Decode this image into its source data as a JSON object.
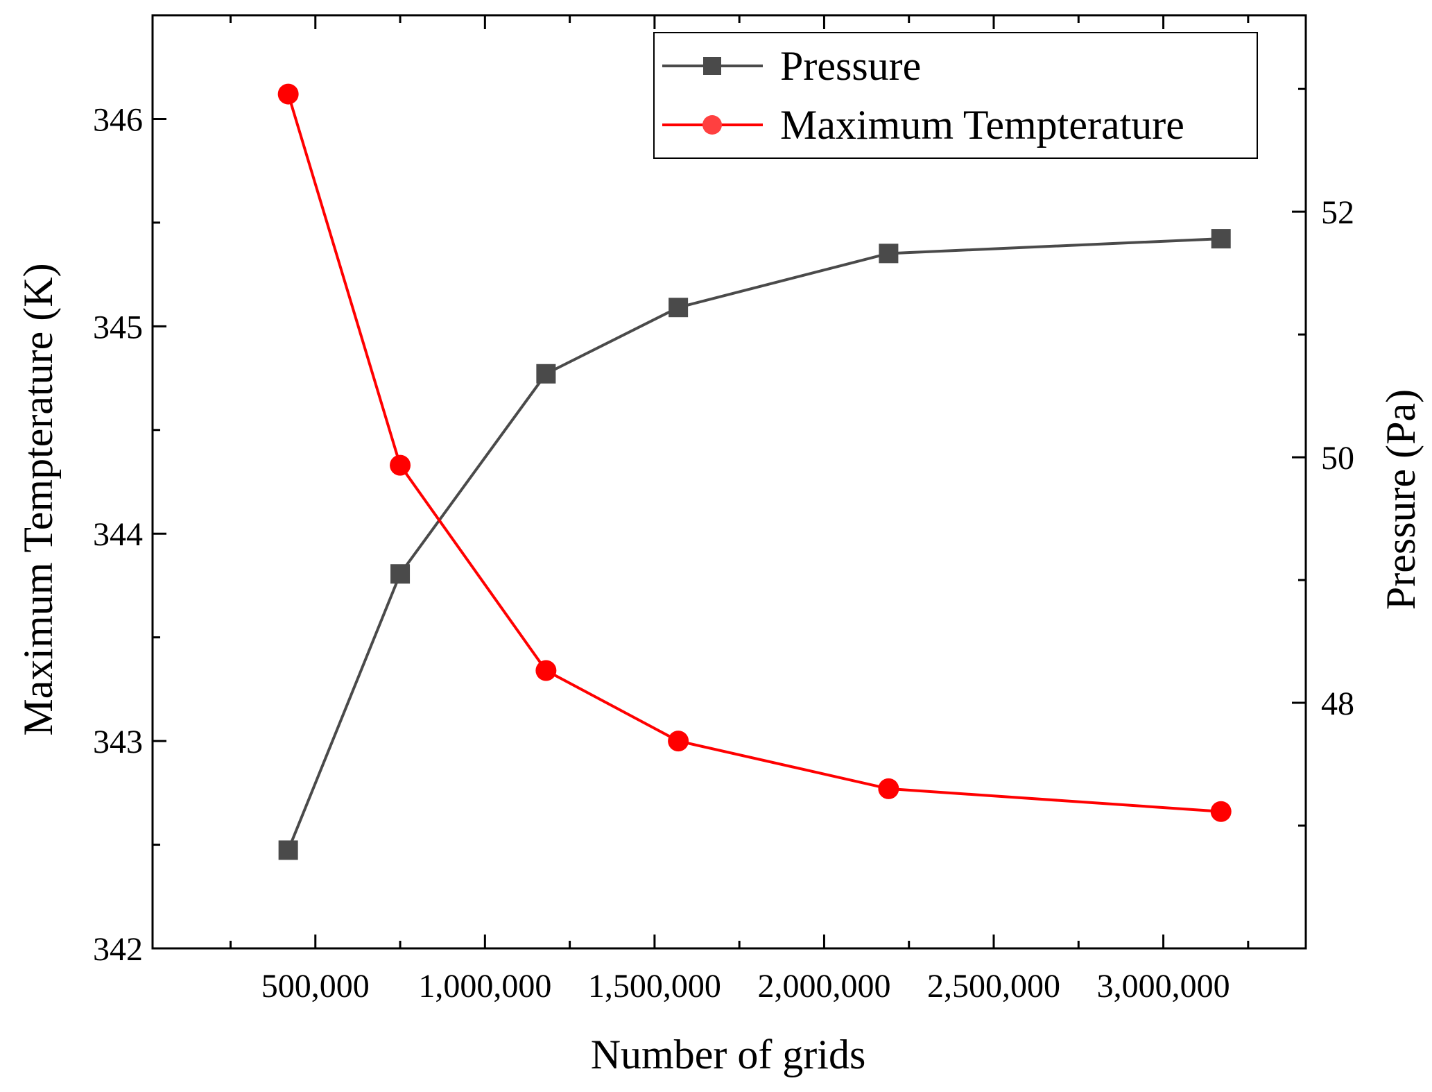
{
  "chart_data": {
    "type": "line",
    "xlabel": "Number of grids",
    "ylabel_left": "Maximum Tempterature (K)",
    "ylabel_right": "Pressure (Pa)",
    "x": [
      420000,
      750000,
      1180000,
      1570000,
      2190000,
      3170000
    ],
    "x_ticks": [
      500000,
      1000000,
      1500000,
      2000000,
      2500000,
      3000000
    ],
    "x_tick_labels": [
      "500,000",
      "1,000,000",
      "1,500,000",
      "2,000,000",
      "2,500,000",
      "3,000,000"
    ],
    "xlim": [
      20000,
      3420000
    ],
    "y_left_lim": [
      342,
      346.5
    ],
    "y_left_ticks": [
      342,
      343,
      344,
      345,
      346
    ],
    "y_left_tick_labels": [
      "342",
      "343",
      "344",
      "345",
      "346"
    ],
    "y_right_lim": [
      46.0,
      53.6
    ],
    "y_right_ticks": [
      48,
      50,
      52
    ],
    "y_right_tick_labels": [
      "48",
      "50",
      "52"
    ],
    "series": [
      {
        "name": "Pressure",
        "axis": "right",
        "marker": "square",
        "color": "#4a4a4a",
        "values": [
          46.8,
          49.05,
          50.68,
          51.22,
          51.66,
          51.78
        ]
      },
      {
        "name": "Maximum Tempterature",
        "axis": "left",
        "marker": "circle",
        "color": "#ff0000",
        "values": [
          346.12,
          344.33,
          343.34,
          343.0,
          342.77,
          342.66
        ]
      }
    ],
    "legend_position": "top-right"
  }
}
